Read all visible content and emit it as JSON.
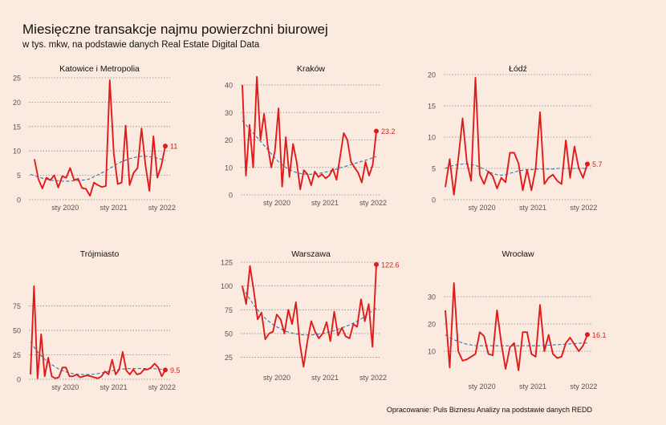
{
  "title": "Miesięczne transakcje najmu powierzchni biurowej",
  "subtitle": "w tys. mkw, na podstawie danych Real Estate Digital Data",
  "caption": "Opracowanie: Puls Biznesu Analizy na podstawie danych REDD",
  "colors": {
    "background": "#fbeadf",
    "series": "#e01b1b",
    "trend": "#2b7bb9",
    "grid": "#888888"
  },
  "chart_data": [
    {
      "type": "line",
      "title": "Katowice i Metropolia",
      "x_start": "2019-04",
      "x_ticks": [
        "sty 2020",
        "sty 2021",
        "sty 2022"
      ],
      "ylim": [
        0,
        25
      ],
      "y_ticks": [
        0,
        5,
        10,
        15,
        20,
        25
      ],
      "series": [
        {
          "values": [
            null,
            8.3,
            4.2,
            2.3,
            4.5,
            4.0,
            5.0,
            2.5,
            4.8,
            4.5,
            6.5,
            4.0,
            4.3,
            2.4,
            2.2,
            0.8,
            3.5,
            3.0,
            2.6,
            2.8,
            24.5,
            9.5,
            3.2,
            3.5,
            15.2,
            3.0,
            5.5,
            6.5,
            14.6,
            7.0,
            1.8,
            13.0,
            4.5,
            7.0,
            11.0
          ]
        }
      ],
      "trend": [
        5.2,
        4.9,
        4.6,
        4.4,
        4.2,
        4.0,
        3.9,
        3.9,
        3.8,
        3.8,
        3.8,
        3.9,
        3.9,
        4.0,
        4.1,
        4.3,
        4.7,
        5.1,
        5.5,
        5.9,
        6.4,
        6.9,
        7.4,
        7.8,
        8.1,
        8.4,
        8.6,
        8.8,
        8.9,
        8.9,
        8.8,
        8.7,
        8.5,
        8.3,
        8.1
      ],
      "last_value_label": "11"
    },
    {
      "type": "line",
      "title": "Kraków",
      "x_start": "2019-04",
      "x_ticks": [
        "sty 2020",
        "sty 2021",
        "sty 2022"
      ],
      "ylim": [
        0,
        40
      ],
      "y_ticks": [
        0,
        10,
        20,
        30,
        40
      ],
      "series": [
        {
          "values": [
            40.0,
            7.0,
            25.5,
            10.0,
            43.0,
            20.0,
            29.5,
            18.0,
            10.0,
            16.0,
            31.5,
            3.0,
            21.0,
            6.5,
            18.5,
            12.0,
            2.0,
            9.0,
            7.5,
            3.5,
            8.5,
            6.5,
            7.5,
            6.0,
            7.0,
            9.5,
            5.5,
            14.0,
            22.5,
            20.0,
            12.0,
            10.0,
            8.0,
            4.5,
            12.0,
            7.0,
            11.0,
            23.2
          ]
        }
      ],
      "trend": [
        27.0,
        25.5,
        24.0,
        22.5,
        21.0,
        19.5,
        18.0,
        16.5,
        15.0,
        13.5,
        12.0,
        11.0,
        10.0,
        9.2,
        8.6,
        8.1,
        7.8,
        7.6,
        7.5,
        7.5,
        7.6,
        7.8,
        8.0,
        8.3,
        8.6,
        9.0,
        9.4,
        9.8,
        10.2,
        10.6,
        11.0,
        11.4,
        11.8,
        12.2,
        12.6,
        13.0,
        13.5,
        14.0
      ],
      "last_value_label": "23.2"
    },
    {
      "type": "line",
      "title": "Łódź",
      "x_start": "2019-04",
      "x_ticks": [
        "sty 2020",
        "sty 2021",
        "sty 2022"
      ],
      "ylim": [
        0,
        20
      ],
      "y_ticks": [
        0,
        5,
        10,
        15,
        20
      ],
      "series": [
        {
          "values": [
            2.0,
            6.5,
            0.8,
            6.5,
            13.0,
            6.0,
            3.0,
            19.5,
            4.0,
            2.5,
            4.5,
            3.8,
            1.8,
            3.5,
            2.8,
            7.5,
            7.5,
            5.8,
            1.5,
            4.8,
            1.5,
            5.0,
            14.0,
            2.5,
            3.5,
            4.0,
            3.0,
            2.5,
            9.5,
            3.5,
            8.5,
            5.0,
            3.5,
            5.7
          ]
        }
      ],
      "trend": [
        5.0,
        5.3,
        5.5,
        5.6,
        5.7,
        5.7,
        5.6,
        5.5,
        5.2,
        4.9,
        4.5,
        4.2,
        4.0,
        3.9,
        4.0,
        4.2,
        4.4,
        4.6,
        4.7,
        4.8,
        4.8,
        4.9,
        4.9,
        4.9,
        4.9,
        4.9,
        5.0,
        5.0,
        5.0,
        5.0,
        5.0,
        5.0,
        5.0,
        5.0
      ],
      "last_value_label": "5.7"
    },
    {
      "type": "line",
      "title": "Trójmiasto",
      "x_start": "2019-04",
      "x_ticks": [
        "sty 2020",
        "sty 2021",
        "sty 2022"
      ],
      "ylim": [
        0,
        95
      ],
      "y_ticks": [
        0,
        25,
        50,
        75
      ],
      "series": [
        {
          "values": [
            5.0,
            95.0,
            1.0,
            46.0,
            3.0,
            22.0,
            3.0,
            1.0,
            2.0,
            12.0,
            12.0,
            3.0,
            3.0,
            5.0,
            2.0,
            3.0,
            4.0,
            3.0,
            2.0,
            1.0,
            3.0,
            8.0,
            5.0,
            20.0,
            5.0,
            10.0,
            28.0,
            9.0,
            5.0,
            10.0,
            5.0,
            6.0,
            10.0,
            10.0,
            12.0,
            16.0,
            12.0,
            3.0,
            9.5
          ]
        }
      ],
      "trend": [
        38.0,
        33.0,
        28.0,
        24.0,
        20.5,
        17.5,
        15.0,
        12.5,
        10.5,
        9.0,
        7.5,
        6.5,
        5.8,
        5.3,
        5.0,
        4.8,
        4.8,
        5.0,
        5.3,
        5.8,
        6.5,
        7.2,
        8.0,
        8.8,
        9.5,
        10.0,
        10.5,
        10.8,
        11.0,
        11.0,
        11.0,
        11.0,
        11.0,
        11.0,
        11.0,
        10.8,
        10.5,
        10.2,
        10.0
      ],
      "last_value_label": "9.5"
    },
    {
      "type": "line",
      "title": "Warszawa",
      "x_start": "2019-04",
      "x_ticks": [
        "sty 2020",
        "sty 2021",
        "sty 2022"
      ],
      "ylim": [
        12,
        125
      ],
      "y_ticks": [
        25,
        50,
        75,
        100,
        125
      ],
      "series": [
        {
          "values": [
            100.0,
            81.0,
            121.0,
            95.0,
            65.0,
            72.0,
            44.0,
            50.0,
            52.0,
            70.0,
            65.0,
            50.0,
            75.0,
            60.0,
            83.0,
            40.0,
            15.0,
            42.0,
            63.0,
            52.0,
            45.0,
            50.0,
            62.0,
            42.0,
            73.0,
            48.0,
            56.0,
            47.0,
            45.0,
            60.0,
            57.0,
            86.0,
            63.0,
            81.0,
            36.0,
            122.6
          ]
        }
      ],
      "trend": [
        98.0,
        92.0,
        86.0,
        80.0,
        75.0,
        70.0,
        66.0,
        62.5,
        59.5,
        57.0,
        55.0,
        53.0,
        51.5,
        50.5,
        49.5,
        49.0,
        48.5,
        48.5,
        48.5,
        49.0,
        49.5,
        50.0,
        51.0,
        52.0,
        53.0,
        54.5,
        56.0,
        57.5,
        59.0,
        61.0,
        63.0,
        65.5,
        68.0,
        71.0,
        74.0,
        77.0
      ],
      "last_value_label": "122.6"
    },
    {
      "type": "line",
      "title": "Wrocław",
      "x_start": "2019-04",
      "x_ticks": [
        "sty 2020",
        "sty 2021",
        "sty 2022"
      ],
      "ylim": [
        0,
        35
      ],
      "y_ticks": [
        10,
        20,
        30
      ],
      "series": [
        {
          "values": [
            25.0,
            4.0,
            35.0,
            10.0,
            6.5,
            7.0,
            8.0,
            9.0,
            17.0,
            15.5,
            9.0,
            8.5,
            25.0,
            13.0,
            3.5,
            11.5,
            13.0,
            3.0,
            17.0,
            17.0,
            9.0,
            8.0,
            27.0,
            10.0,
            16.0,
            9.0,
            7.5,
            8.0,
            13.0,
            15.0,
            12.5,
            10.0,
            12.0,
            16.1
          ]
        }
      ],
      "trend": [
        16.0,
        15.0,
        14.2,
        13.6,
        13.0,
        12.6,
        12.3,
        12.1,
        12.0,
        12.0,
        12.0,
        12.0,
        12.0,
        12.0,
        12.0,
        12.0,
        12.0,
        12.0,
        12.0,
        12.0,
        12.0,
        12.0,
        12.0,
        12.1,
        12.2,
        12.3,
        12.4,
        12.5,
        12.6,
        12.7,
        12.8,
        12.9,
        13.0,
        13.0
      ],
      "last_value_label": "16.1"
    }
  ]
}
